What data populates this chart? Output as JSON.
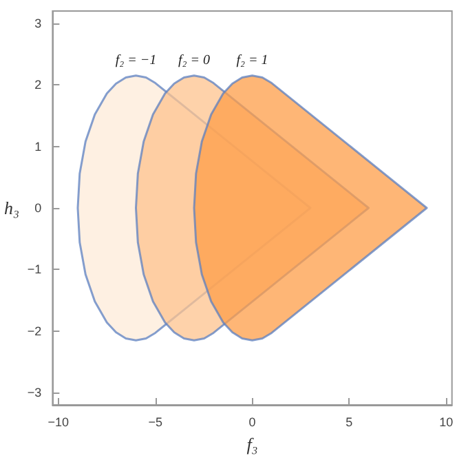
{
  "chart_data": {
    "type": "area",
    "xlabel": "f₃",
    "ylabel": "h₃",
    "xlim": [
      -10.3,
      10.3
    ],
    "ylim": [
      -3.2,
      3.2
    ],
    "xticks": [
      -10,
      -5,
      0,
      5,
      10
    ],
    "yticks": [
      -3,
      -2,
      -1,
      0,
      1,
      2,
      3
    ],
    "grid": false,
    "legend": false,
    "series": [
      {
        "name": "f₂ = −1",
        "color": "#fdebd8",
        "x": [
          -5,
          -5.48,
          -6,
          -6.52,
          -7.03,
          -7.5,
          -8.12,
          -8.6,
          -8.9,
          -9,
          -8.9,
          -8.6,
          -8.12,
          -7.5,
          -7.03,
          -6.52,
          -6,
          -5.48,
          -5,
          3,
          -5
        ],
        "values": [
          2.03,
          2.12,
          2.15,
          2.12,
          2.02,
          1.86,
          1.52,
          1.08,
          0.56,
          0,
          -0.56,
          -1.08,
          -1.52,
          -1.86,
          -2.02,
          -2.12,
          -2.15,
          -2.12,
          -2.03,
          0,
          2.03
        ]
      },
      {
        "name": "f₂ = 0",
        "color": "#fdc38d",
        "x": [
          -2,
          -2.48,
          -3,
          -3.52,
          -4.03,
          -4.5,
          -5.12,
          -5.6,
          -5.9,
          -6,
          -5.9,
          -5.6,
          -5.12,
          -4.5,
          -4.03,
          -3.52,
          -3,
          -2.48,
          -2,
          6,
          -2
        ],
        "values": [
          2.03,
          2.12,
          2.15,
          2.12,
          2.02,
          1.86,
          1.52,
          1.08,
          0.56,
          0,
          -0.56,
          -1.08,
          -1.52,
          -1.86,
          -2.02,
          -2.12,
          -2.15,
          -2.12,
          -2.03,
          0,
          2.03
        ]
      },
      {
        "name": "f₂ = 1",
        "color": "#fd9e48",
        "x": [
          1,
          0.52,
          0,
          -0.52,
          -1.03,
          -1.5,
          -2.12,
          -2.6,
          -2.9,
          -3,
          -2.9,
          -2.6,
          -2.12,
          -1.5,
          -1.03,
          -0.52,
          0,
          0.52,
          1,
          9,
          1
        ],
        "values": [
          2.03,
          2.12,
          2.15,
          2.12,
          2.02,
          1.86,
          1.52,
          1.08,
          0.56,
          0,
          -0.56,
          -1.08,
          -1.52,
          -1.86,
          -2.02,
          -2.12,
          -2.15,
          -2.12,
          -2.03,
          0,
          2.03
        ]
      }
    ]
  }
}
